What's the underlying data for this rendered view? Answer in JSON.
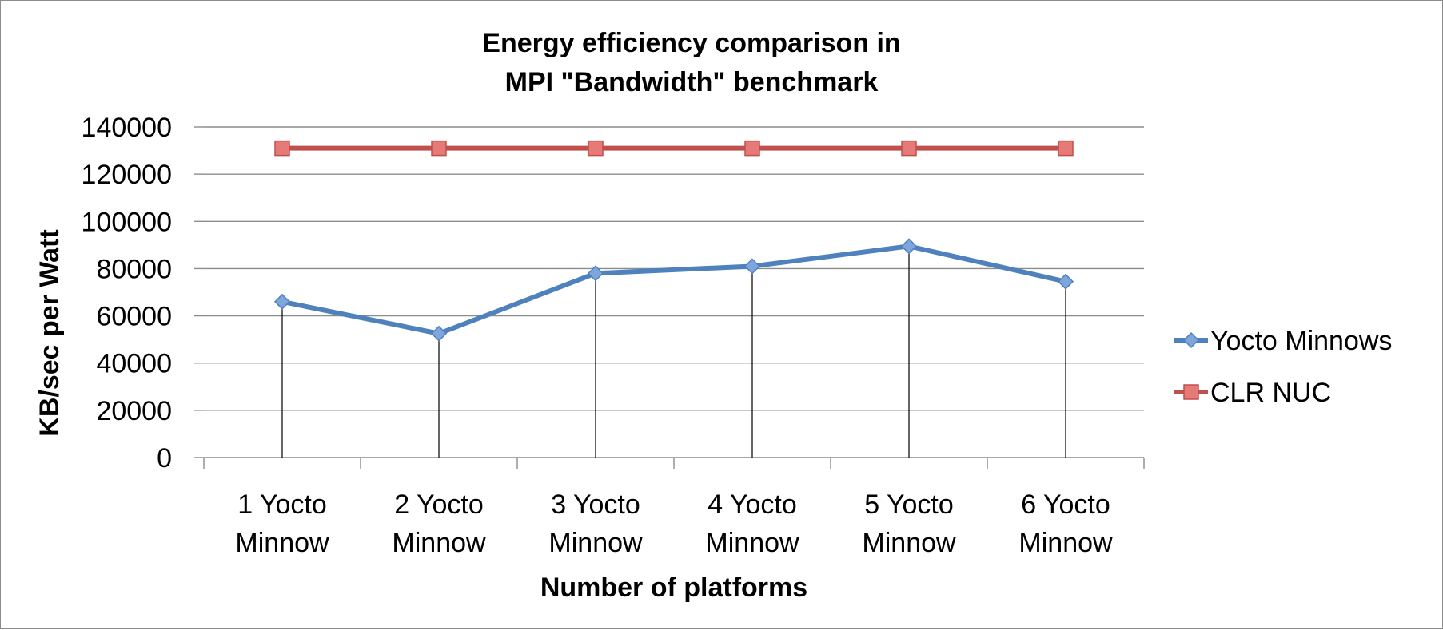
{
  "chart_data": {
    "type": "line",
    "title": [
      "Energy efficiency comparison in",
      "MPI \"Bandwidth\" benchmark"
    ],
    "xlabel": "Number of platforms",
    "ylabel": "KB/sec per Watt",
    "ylim": [
      0,
      140000
    ],
    "ytick_step": 20000,
    "yticks": [
      "0",
      "20000",
      "40000",
      "60000",
      "80000",
      "100000",
      "120000",
      "140000"
    ],
    "categories": [
      [
        "1 Yocto",
        "Minnow"
      ],
      [
        "2 Yocto",
        "Minnow"
      ],
      [
        "3 Yocto",
        "Minnow"
      ],
      [
        "4 Yocto",
        "Minnow"
      ],
      [
        "5 Yocto",
        "Minnow"
      ],
      [
        "6 Yocto",
        "Minnow"
      ]
    ],
    "grid": true,
    "drop_lines_series": "Yocto Minnows",
    "legend_position": "right",
    "series": [
      {
        "name": "Yocto Minnows",
        "values": [
          66000,
          52500,
          78000,
          81000,
          89500,
          74500
        ],
        "color": "#4f81bd",
        "marker_fill": "#7ea6dc",
        "marker": "diamond"
      },
      {
        "name": "CLR NUC",
        "values": [
          131000,
          131000,
          131000,
          131000,
          131000,
          131000
        ],
        "color": "#c0504d",
        "marker_fill": "#e67a76",
        "marker": "square"
      }
    ]
  }
}
